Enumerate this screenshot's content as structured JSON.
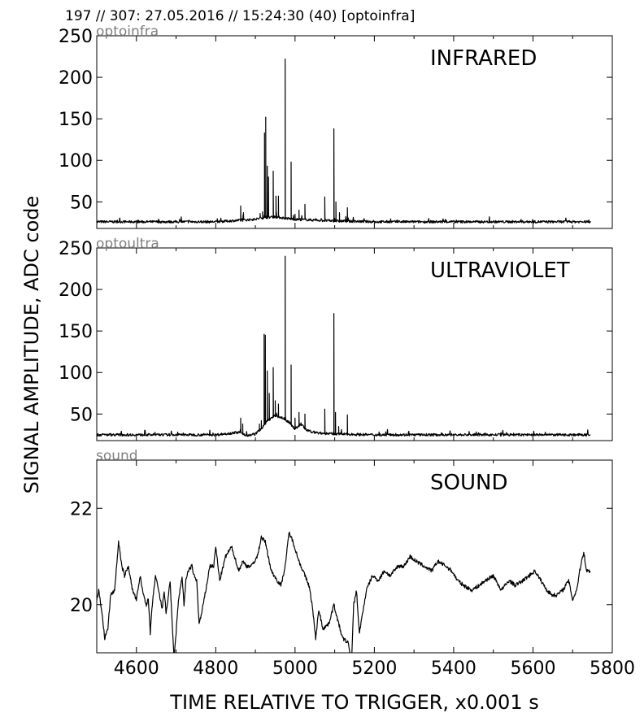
{
  "header": "197 // 307:   27.05.2016 // 15:24:30 (40)  [optoinfra]",
  "chart_data": {
    "type": "line",
    "xlabel": "TIME RELATIVE TO TRIGGER,   x0.001 s",
    "ylabel": "SIGNAL AMPLITUDE,  ADC code",
    "xlim": [
      4500,
      5800
    ],
    "xticks": [
      4600,
      4800,
      5000,
      5200,
      5400,
      5600,
      5800
    ],
    "panels": [
      {
        "id": "infrared",
        "title": "INFRARED",
        "channel": "optoinfra",
        "ylim": [
          18,
          250
        ],
        "yticks": [
          50,
          100,
          150,
          200,
          250
        ],
        "baseline": [
          [
            4500,
            26
          ],
          [
            4650,
            26
          ],
          [
            4800,
            26
          ],
          [
            4870,
            28
          ],
          [
            4900,
            29
          ],
          [
            4920,
            31
          ],
          [
            4950,
            32
          ],
          [
            4980,
            30
          ],
          [
            5000,
            29
          ],
          [
            5050,
            28
          ],
          [
            5100,
            27
          ],
          [
            5200,
            26
          ],
          [
            5400,
            26
          ],
          [
            5600,
            26
          ],
          [
            5745,
            26
          ]
        ],
        "spikes": [
          [
            4863,
            45
          ],
          [
            4870,
            37
          ],
          [
            4912,
            36
          ],
          [
            4918,
            38
          ],
          [
            4923,
            133
          ],
          [
            4926,
            152
          ],
          [
            4930,
            93
          ],
          [
            4933,
            80
          ],
          [
            4945,
            87
          ],
          [
            4952,
            57
          ],
          [
            4958,
            57
          ],
          [
            4975,
            222
          ],
          [
            4990,
            98
          ],
          [
            5000,
            35
          ],
          [
            5010,
            40
          ],
          [
            5025,
            47
          ],
          [
            5075,
            56
          ],
          [
            5098,
            138
          ],
          [
            5103,
            50
          ],
          [
            5112,
            37
          ],
          [
            5132,
            43
          ]
        ]
      },
      {
        "id": "ultraviolet",
        "title": "ULTRAVIOLET",
        "channel": "optoultra",
        "ylim": [
          18,
          250
        ],
        "yticks": [
          50,
          100,
          150,
          200,
          250
        ],
        "baseline": [
          [
            4500,
            25
          ],
          [
            4650,
            25
          ],
          [
            4800,
            25
          ],
          [
            4860,
            28
          ],
          [
            4880,
            24
          ],
          [
            4900,
            26
          ],
          [
            4920,
            35
          ],
          [
            4930,
            42
          ],
          [
            4950,
            48
          ],
          [
            4970,
            45
          ],
          [
            4985,
            40
          ],
          [
            5000,
            32
          ],
          [
            5015,
            38
          ],
          [
            5030,
            30
          ],
          [
            5060,
            27
          ],
          [
            5100,
            26
          ],
          [
            5200,
            25
          ],
          [
            5400,
            25
          ],
          [
            5600,
            25
          ],
          [
            5745,
            25
          ]
        ],
        "spikes": [
          [
            4863,
            45
          ],
          [
            4868,
            38
          ],
          [
            4910,
            38
          ],
          [
            4915,
            42
          ],
          [
            4922,
            146
          ],
          [
            4925,
            145
          ],
          [
            4930,
            102
          ],
          [
            4935,
            75
          ],
          [
            4945,
            106
          ],
          [
            4950,
            66
          ],
          [
            4958,
            62
          ],
          [
            4975,
            240
          ],
          [
            4990,
            109
          ],
          [
            5000,
            45
          ],
          [
            5010,
            52
          ],
          [
            5025,
            50
          ],
          [
            5075,
            56
          ],
          [
            5098,
            171
          ],
          [
            5102,
            52
          ],
          [
            5110,
            35
          ],
          [
            5132,
            49
          ]
        ]
      },
      {
        "id": "sound",
        "title": "SOUND",
        "channel": "sound",
        "ylim": [
          19,
          23
        ],
        "yticks": [
          20,
          22
        ],
        "points": [
          [
            4500,
            20.1
          ],
          [
            4505,
            20.3
          ],
          [
            4512,
            19.9
          ],
          [
            4520,
            19.3
          ],
          [
            4528,
            19.5
          ],
          [
            4535,
            20.2
          ],
          [
            4545,
            20.3
          ],
          [
            4555,
            21.3
          ],
          [
            4563,
            20.8
          ],
          [
            4570,
            20.6
          ],
          [
            4580,
            20.8
          ],
          [
            4590,
            20.3
          ],
          [
            4600,
            20.1
          ],
          [
            4610,
            20.6
          ],
          [
            4615,
            20.3
          ],
          [
            4625,
            20.0
          ],
          [
            4630,
            20.1
          ],
          [
            4635,
            19.4
          ],
          [
            4640,
            20.0
          ],
          [
            4648,
            20.6
          ],
          [
            4658,
            20.2
          ],
          [
            4665,
            19.9
          ],
          [
            4670,
            20.3
          ],
          [
            4675,
            19.8
          ],
          [
            4685,
            20.5
          ],
          [
            4690,
            19.6
          ],
          [
            4695,
            18.9
          ],
          [
            4700,
            19.4
          ],
          [
            4705,
            20.0
          ],
          [
            4715,
            20.6
          ],
          [
            4720,
            20.0
          ],
          [
            4725,
            20.5
          ],
          [
            4730,
            20.7
          ],
          [
            4740,
            20.8
          ],
          [
            4745,
            20.6
          ],
          [
            4752,
            20.5
          ],
          [
            4758,
            19.6
          ],
          [
            4764,
            19.8
          ],
          [
            4775,
            20.3
          ],
          [
            4785,
            20.8
          ],
          [
            4795,
            20.8
          ],
          [
            4800,
            21.2
          ],
          [
            4810,
            20.5
          ],
          [
            4825,
            21.0
          ],
          [
            4840,
            21.2
          ],
          [
            4858,
            20.7
          ],
          [
            4868,
            20.9
          ],
          [
            4878,
            20.8
          ],
          [
            4890,
            20.8
          ],
          [
            4905,
            21.0
          ],
          [
            4915,
            21.4
          ],
          [
            4925,
            21.3
          ],
          [
            4940,
            20.7
          ],
          [
            4955,
            20.5
          ],
          [
            4965,
            20.4
          ],
          [
            4975,
            20.8
          ],
          [
            4985,
            21.5
          ],
          [
            4995,
            21.3
          ],
          [
            5010,
            20.9
          ],
          [
            5025,
            20.6
          ],
          [
            5035,
            20.4
          ],
          [
            5043,
            20.0
          ],
          [
            5052,
            19.3
          ],
          [
            5060,
            19.9
          ],
          [
            5070,
            19.5
          ],
          [
            5085,
            19.6
          ],
          [
            5098,
            20.0
          ],
          [
            5110,
            19.6
          ],
          [
            5120,
            19.3
          ],
          [
            5135,
            19.2
          ],
          [
            5142,
            18.7
          ],
          [
            5148,
            20.0
          ],
          [
            5155,
            20.3
          ],
          [
            5162,
            19.4
          ],
          [
            5170,
            19.8
          ],
          [
            5180,
            20.3
          ],
          [
            5195,
            20.6
          ],
          [
            5210,
            20.5
          ],
          [
            5225,
            20.7
          ],
          [
            5240,
            20.6
          ],
          [
            5260,
            20.8
          ],
          [
            5275,
            20.8
          ],
          [
            5290,
            21.0
          ],
          [
            5305,
            20.9
          ],
          [
            5325,
            20.8
          ],
          [
            5345,
            20.7
          ],
          [
            5360,
            20.9
          ],
          [
            5380,
            20.8
          ],
          [
            5395,
            20.7
          ],
          [
            5410,
            20.5
          ],
          [
            5425,
            20.4
          ],
          [
            5445,
            20.3
          ],
          [
            5465,
            20.4
          ],
          [
            5480,
            20.5
          ],
          [
            5500,
            20.6
          ],
          [
            5520,
            20.3
          ],
          [
            5540,
            20.5
          ],
          [
            5555,
            20.4
          ],
          [
            5575,
            20.5
          ],
          [
            5590,
            20.6
          ],
          [
            5605,
            20.7
          ],
          [
            5620,
            20.5
          ],
          [
            5635,
            20.3
          ],
          [
            5648,
            20.2
          ],
          [
            5660,
            20.2
          ],
          [
            5675,
            20.3
          ],
          [
            5690,
            20.5
          ],
          [
            5700,
            20.1
          ],
          [
            5710,
            20.3
          ],
          [
            5720,
            20.8
          ],
          [
            5728,
            21.1
          ],
          [
            5735,
            20.7
          ],
          [
            5745,
            20.7
          ]
        ]
      }
    ]
  }
}
